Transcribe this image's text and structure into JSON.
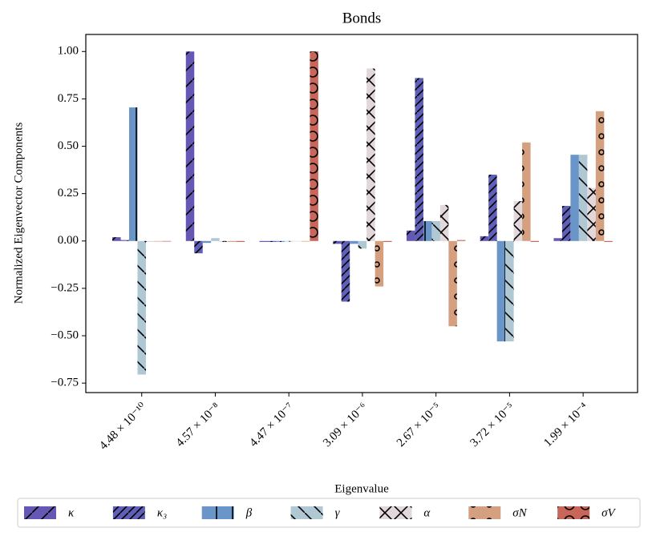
{
  "chart_data": {
    "type": "bar",
    "title": "Bonds",
    "x_label": "Eigenvalue",
    "y_label": "Normalized Eigenvector Components",
    "categories": [
      "4.48 × 10⁻¹⁰",
      "4.57 × 10⁻⁸",
      "4.47 × 10⁻⁷",
      "3.09 × 10⁻⁶",
      "2.67 × 10⁻⁵",
      "3.72 × 10⁻⁵",
      "1.99 × 10⁻⁴"
    ],
    "ylim": [
      -0.8,
      1.09
    ],
    "yticks": [
      {
        "value": -0.75,
        "label": "−0.75"
      },
      {
        "value": -0.5,
        "label": "−0.50"
      },
      {
        "value": -0.25,
        "label": "−0.25"
      },
      {
        "value": 0,
        "label": "0.00"
      },
      {
        "value": 0.25,
        "label": "0.25"
      },
      {
        "value": 0.5,
        "label": "0.50"
      },
      {
        "value": 0.75,
        "label": "0.75"
      },
      {
        "value": 1,
        "label": "1.00"
      }
    ],
    "grid": false,
    "legend": "bottom",
    "series": [
      {
        "name": "κ",
        "color": "#6458b4",
        "values": [
          0.02,
          1.0,
          -0.005,
          -0.015,
          0.055,
          0.025,
          0.015
        ]
      },
      {
        "name": "κ₃",
        "color": "#5f5fb8",
        "values": [
          0.005,
          -0.065,
          -0.005,
          -0.32,
          0.86,
          0.35,
          0.185
        ]
      },
      {
        "name": "β",
        "color": "#6a95c8",
        "values": [
          0.705,
          -0.01,
          -0.005,
          -0.015,
          0.105,
          -0.53,
          0.455
        ]
      },
      {
        "name": "γ",
        "color": "#b0c8d4",
        "values": [
          -0.705,
          0.015,
          -0.003,
          -0.04,
          0.105,
          -0.53,
          0.455
        ]
      },
      {
        "name": "α",
        "color": "#e2d8dc",
        "values": [
          -0.005,
          -0.005,
          -0.003,
          0.91,
          0.19,
          0.21,
          0.28
        ]
      },
      {
        "name": "σN",
        "color": "#d4a080",
        "values": [
          -0.003,
          -0.005,
          -0.003,
          -0.24,
          -0.45,
          0.52,
          0.685
        ]
      },
      {
        "name": "σV",
        "color": "#c8665a",
        "values": [
          -0.003,
          -0.005,
          1.0,
          -0.005,
          0.005,
          -0.005,
          -0.005
        ]
      }
    ]
  }
}
